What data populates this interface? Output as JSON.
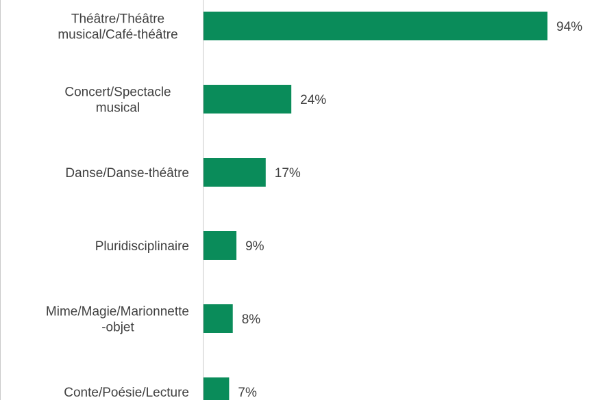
{
  "chart_data": {
    "type": "bar",
    "orientation": "horizontal",
    "categories": [
      [
        "Théâtre/Théâtre",
        "musical/Café-théâtre"
      ],
      [
        "Concert/Spectacle",
        "musical"
      ],
      [
        "Danse/Danse-théâtre"
      ],
      [
        "Pluridisciplinaire"
      ],
      [
        "Mime/Magie/Marionnette",
        "-objet"
      ],
      [
        "Conte/Poésie/Lecture"
      ]
    ],
    "values": [
      94,
      24,
      17,
      9,
      8,
      7
    ],
    "value_labels": [
      "94%",
      "24%",
      "17%",
      "9%",
      "8%",
      "7%"
    ],
    "unit": "%",
    "xlim": [
      0,
      94
    ],
    "grid": false,
    "legend": "none",
    "colors": {
      "bar": "#0a8c5a",
      "axis": "#c8c8c8",
      "text": "#404040"
    }
  }
}
